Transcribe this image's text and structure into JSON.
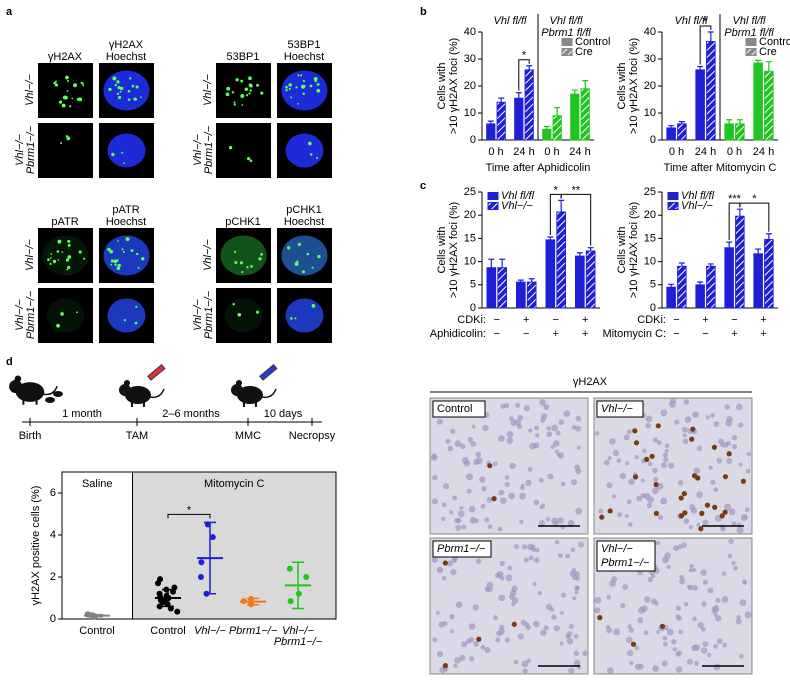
{
  "figure": {
    "panel_labels": [
      "a",
      "b",
      "c",
      "d"
    ],
    "microscopy": {
      "stains": [
        [
          "γH2AX",
          "γH2AX",
          "Hoechst"
        ],
        [
          "53BP1",
          "53BP1",
          "Hoechst"
        ],
        [
          "pATR",
          "pATR",
          "Hoechst"
        ],
        [
          "pCHK1",
          "pCHK1",
          "Hoechst"
        ]
      ],
      "rows": [
        [
          "Vhl−/−"
        ],
        [
          "Vhl−/−",
          "Pbrm1−/−"
        ]
      ]
    },
    "timeline": [
      "Birth",
      "1 month",
      "TAM",
      "2–6 months",
      "MMC",
      "10 days",
      "Necropsy"
    ],
    "ihc": {
      "title": "γH2AX",
      "panels": [
        [
          "Control"
        ],
        [
          "Vhl−/−"
        ],
        [
          "Pbrm1−/−"
        ],
        [
          "Vhl−/−",
          "Pbrm1−/−"
        ]
      ]
    }
  },
  "chart_data": [
    {
      "type": "bar",
      "groups": [
        [
          "Vhl fl/fl"
        ],
        [
          "Vhl fl/fl",
          "Pbrm1 fl/fl"
        ]
      ],
      "categories": [
        "0 h",
        "24 h",
        "0 h",
        "24 h"
      ],
      "category_colors": [
        "#1f1fd6",
        "#1f1fd6",
        "#22c422",
        "#22c422"
      ],
      "series": [
        {
          "name": "Control",
          "color": "#888888",
          "pattern": "solid",
          "values": [
            6,
            15.5,
            4,
            17
          ],
          "errors": [
            1,
            2,
            1,
            1.5
          ]
        },
        {
          "name": "Cre",
          "color": "#888888",
          "pattern": "hatched",
          "values": [
            14,
            26,
            9,
            19
          ],
          "errors": [
            1.5,
            1.5,
            3,
            3
          ]
        }
      ],
      "ylabel": [
        "Cells with",
        ">10 γH2AX foci (%)"
      ],
      "xlabel": "Time after Aphidicolin",
      "ylim": [
        0,
        40
      ],
      "yticks": [
        0,
        10,
        20,
        30,
        40
      ],
      "annotations": [
        "*"
      ],
      "legend": "upper right"
    },
    {
      "type": "bar",
      "groups": [
        [
          "Vhl fl/fl"
        ],
        [
          "Vhl fl/fl",
          "Pbrm1 fl/fl"
        ]
      ],
      "categories": [
        "0 h",
        "24 h",
        "0 h",
        "24 h"
      ],
      "category_colors": [
        "#1f1fd6",
        "#1f1fd6",
        "#22c422",
        "#22c422"
      ],
      "series": [
        {
          "name": "Control",
          "color": "#888888",
          "pattern": "solid",
          "values": [
            4.5,
            26,
            6,
            28.5
          ],
          "errors": [
            0.8,
            1.2,
            1.5,
            1
          ]
        },
        {
          "name": "Cre",
          "color": "#888888",
          "pattern": "hatched",
          "values": [
            6,
            36.5,
            6,
            25.5
          ],
          "errors": [
            0.8,
            3.5,
            1.5,
            3.5
          ]
        }
      ],
      "ylabel": [
        "Cells with",
        ">10 γH2AX foci (%)"
      ],
      "xlabel": "Time after Mitomycin C",
      "ylim": [
        0,
        40
      ],
      "yticks": [
        0,
        10,
        20,
        30,
        40
      ],
      "annotations": [
        "*"
      ],
      "legend": "upper right"
    },
    {
      "type": "bar",
      "rows": [
        {
          "label": "CDKi:",
          "values": [
            "−",
            "+",
            "−",
            "+"
          ]
        },
        {
          "label": "Aphidicolin:",
          "values": [
            "−",
            "−",
            "+",
            "+"
          ]
        }
      ],
      "series": [
        {
          "name": "Vhl fl/fl",
          "color": "#1f1fd6",
          "pattern": "solid",
          "values": [
            8.7,
            5.6,
            14.7,
            11.2
          ],
          "errors": [
            1.8,
            0.4,
            0.6,
            0.7
          ]
        },
        {
          "name": "Vhl−/−",
          "color": "#1f1fd6",
          "pattern": "hatched",
          "values": [
            8.7,
            5.6,
            20.7,
            12.3
          ],
          "errors": [
            1.8,
            0.7,
            2.5,
            0.7
          ]
        }
      ],
      "ylabel": [
        "Cells with",
        ">10 γH2AX foci (%)"
      ],
      "ylim": [
        0,
        25
      ],
      "yticks": [
        0,
        5,
        10,
        15,
        20,
        25
      ],
      "annotations": [
        "*",
        "**"
      ],
      "legend": "upper left"
    },
    {
      "type": "bar",
      "rows": [
        {
          "label": "CDKi:",
          "values": [
            "−",
            "+",
            "−",
            "+"
          ]
        },
        {
          "label": "Mitomycin C:",
          "values": [
            "−",
            "−",
            "+",
            "+"
          ]
        }
      ],
      "series": [
        {
          "name": "Vhl fl/fl",
          "color": "#1f1fd6",
          "pattern": "solid",
          "values": [
            4.5,
            5,
            13,
            11.7
          ],
          "errors": [
            0.6,
            0.6,
            1.2,
            1
          ]
        },
        {
          "name": "Vhl−/−",
          "color": "#1f1fd6",
          "pattern": "hatched",
          "values": [
            9,
            9,
            19.8,
            14.8
          ],
          "errors": [
            0.7,
            0.5,
            1.5,
            1.2
          ]
        }
      ],
      "ylabel": [
        "Cells with",
        ">10 γH2AX foci (%)"
      ],
      "ylim": [
        0,
        25
      ],
      "yticks": [
        0,
        5,
        10,
        15,
        20,
        25
      ],
      "annotations": [
        "***",
        "*"
      ],
      "legend": "upper left"
    },
    {
      "type": "strip",
      "regions": [
        "Saline",
        "Mitomycin C"
      ],
      "categories": [
        [
          "Control"
        ],
        [
          "Control"
        ],
        [
          "Vhl−/−"
        ],
        [
          "Pbrm1−/−"
        ],
        [
          "Vhl−/−",
          "Pbrm1−/−"
        ]
      ],
      "colors": [
        "#808080",
        "#000000",
        "#1f1fd6",
        "#f07a1a",
        "#22c422"
      ],
      "points": [
        [
          0.1,
          0.15,
          0.2,
          0.18,
          0.22,
          0.12
        ],
        [
          0.35,
          0.5,
          0.6,
          0.7,
          0.8,
          0.85,
          0.9,
          1.0,
          1.05,
          1.1,
          1.2,
          1.3,
          1.4,
          1.5,
          1.7,
          1.9
        ],
        [
          4.5,
          3.9,
          2.7,
          2.0,
          1.2
        ],
        [
          0.7,
          0.85,
          0.95
        ],
        [
          2.4,
          2.0,
          1.2,
          0.85
        ]
      ],
      "means": [
        0.16,
        1.0,
        2.9,
        0.83,
        1.6
      ],
      "sds": [
        0.05,
        0.4,
        1.7,
        0.15,
        1.1
      ],
      "ylabel": "γH2AX positive cells (%)",
      "ylim": [
        0,
        7
      ],
      "yticks": [
        0,
        2,
        4,
        6
      ],
      "annotations": [
        "*"
      ]
    }
  ]
}
